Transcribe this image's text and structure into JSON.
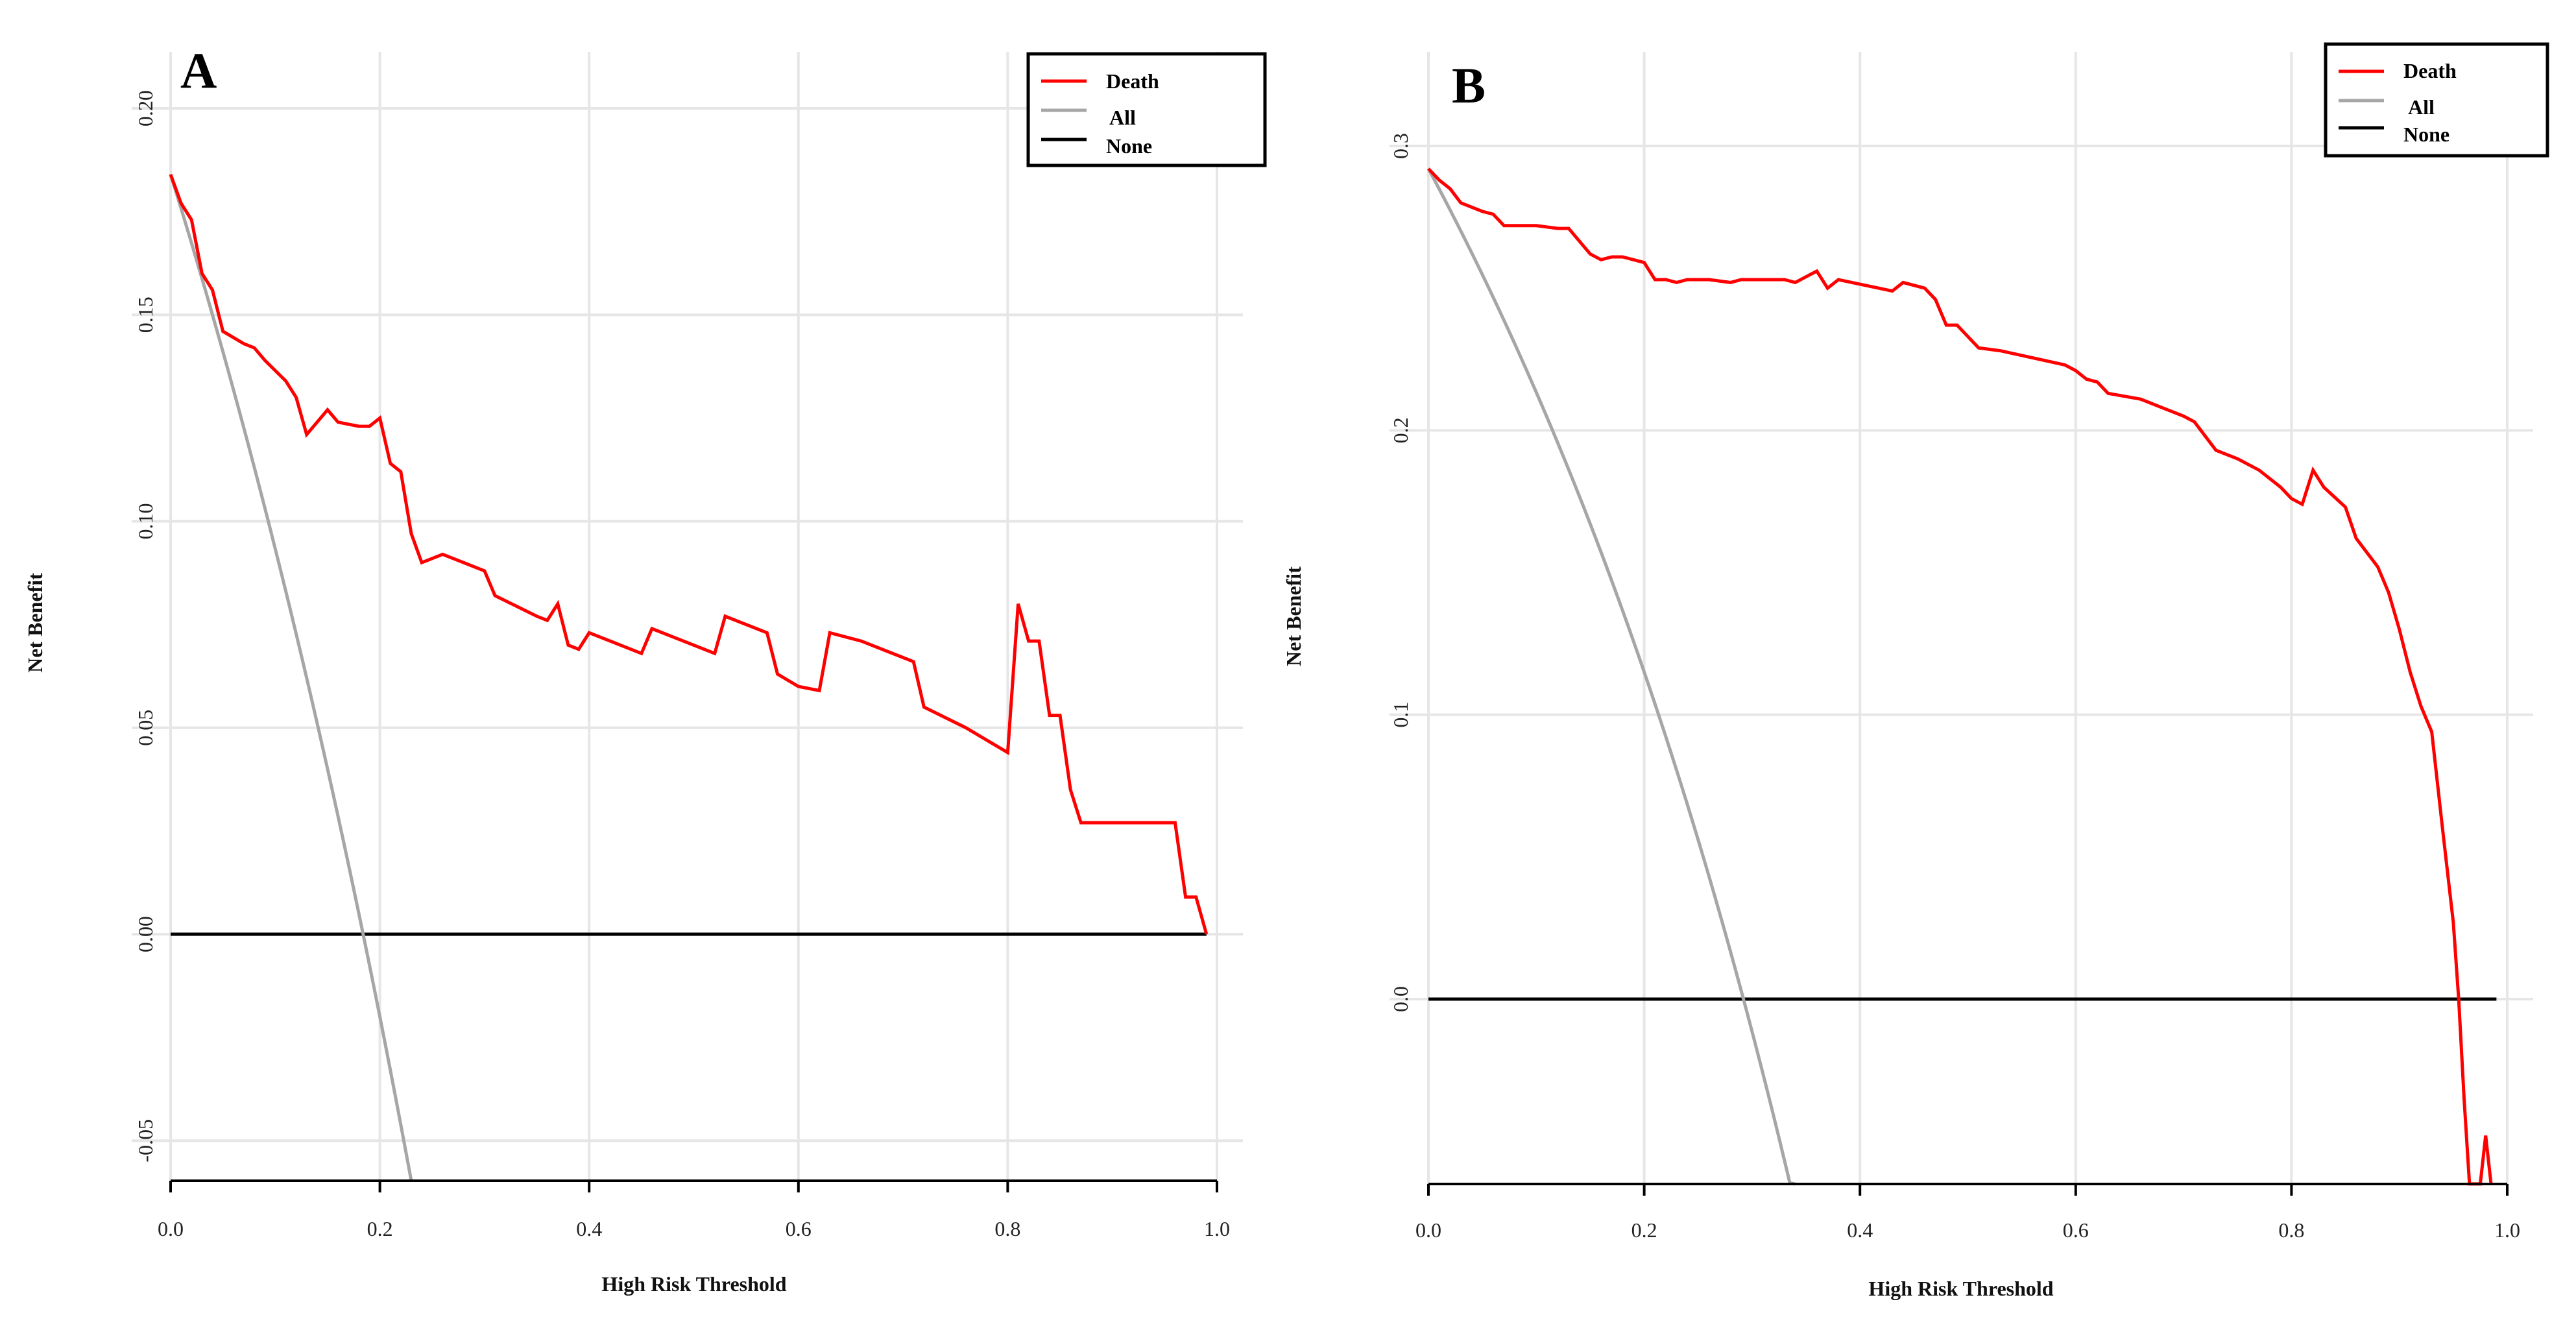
{
  "chart_data": [
    {
      "type": "line",
      "panel_label": "A",
      "xlabel": "High Risk Threshold",
      "ylabel": "Net Benefit",
      "xlim": [
        0,
        1
      ],
      "ylim": [
        -0.06,
        0.2
      ],
      "x_ticks": [
        "0.0",
        "0.2",
        "0.4",
        "0.6",
        "0.8",
        "1.0"
      ],
      "y_ticks": [
        "-0.05",
        "0.00",
        "0.05",
        "0.10",
        "0.15",
        "0.20"
      ],
      "legend_position": "top-right",
      "series": [
        {
          "name": "Death",
          "color": "#ff0000",
          "points": [
            [
              0.0,
              0.184
            ],
            [
              0.01,
              0.177
            ],
            [
              0.02,
              0.173
            ],
            [
              0.03,
              0.16
            ],
            [
              0.04,
              0.156
            ],
            [
              0.05,
              0.146
            ],
            [
              0.07,
              0.143
            ],
            [
              0.08,
              0.142
            ],
            [
              0.09,
              0.139
            ],
            [
              0.11,
              0.134
            ],
            [
              0.12,
              0.13
            ],
            [
              0.13,
              0.121
            ],
            [
              0.14,
              0.124
            ],
            [
              0.15,
              0.127
            ],
            [
              0.16,
              0.124
            ],
            [
              0.18,
              0.123
            ],
            [
              0.19,
              0.123
            ],
            [
              0.2,
              0.125
            ],
            [
              0.21,
              0.114
            ],
            [
              0.22,
              0.112
            ],
            [
              0.23,
              0.097
            ],
            [
              0.24,
              0.09
            ],
            [
              0.26,
              0.092
            ],
            [
              0.27,
              0.091
            ],
            [
              0.3,
              0.088
            ],
            [
              0.31,
              0.082
            ],
            [
              0.35,
              0.077
            ],
            [
              0.36,
              0.076
            ],
            [
              0.37,
              0.08
            ],
            [
              0.38,
              0.07
            ],
            [
              0.39,
              0.069
            ],
            [
              0.4,
              0.073
            ],
            [
              0.45,
              0.068
            ],
            [
              0.46,
              0.074
            ],
            [
              0.52,
              0.068
            ],
            [
              0.53,
              0.077
            ],
            [
              0.57,
              0.073
            ],
            [
              0.58,
              0.063
            ],
            [
              0.6,
              0.06
            ],
            [
              0.62,
              0.059
            ],
            [
              0.63,
              0.073
            ],
            [
              0.66,
              0.071
            ],
            [
              0.71,
              0.066
            ],
            [
              0.72,
              0.055
            ],
            [
              0.76,
              0.05
            ],
            [
              0.8,
              0.044
            ],
            [
              0.81,
              0.08
            ],
            [
              0.82,
              0.071
            ],
            [
              0.83,
              0.071
            ],
            [
              0.84,
              0.053
            ],
            [
              0.85,
              0.053
            ],
            [
              0.86,
              0.035
            ],
            [
              0.87,
              0.027
            ],
            [
              0.96,
              0.027
            ],
            [
              0.97,
              0.009
            ],
            [
              0.98,
              0.009
            ],
            [
              0.99,
              0.0
            ]
          ]
        },
        {
          "name": "All",
          "color": "#a6a6a6",
          "prevalence": 0.184
        },
        {
          "name": "None",
          "color": "#000000",
          "value": 0
        }
      ]
    },
    {
      "type": "line",
      "panel_label": "B",
      "xlabel": "High Risk Threshold",
      "ylabel": "Net Benefit",
      "xlim": [
        0,
        1
      ],
      "ylim": [
        -0.065,
        0.3
      ],
      "x_ticks": [
        "0.0",
        "0.2",
        "0.4",
        "0.6",
        "0.8",
        "1.0"
      ],
      "y_ticks": [
        "0.0",
        "0.1",
        "0.2",
        "0.3"
      ],
      "legend_position": "top-right",
      "series": [
        {
          "name": "Death",
          "color": "#ff0000",
          "points": [
            [
              0.0,
              0.292
            ],
            [
              0.01,
              0.288
            ],
            [
              0.02,
              0.285
            ],
            [
              0.03,
              0.28
            ],
            [
              0.05,
              0.277
            ],
            [
              0.06,
              0.276
            ],
            [
              0.07,
              0.272
            ],
            [
              0.1,
              0.272
            ],
            [
              0.12,
              0.271
            ],
            [
              0.13,
              0.271
            ],
            [
              0.15,
              0.262
            ],
            [
              0.16,
              0.26
            ],
            [
              0.17,
              0.261
            ],
            [
              0.18,
              0.261
            ],
            [
              0.2,
              0.259
            ],
            [
              0.21,
              0.253
            ],
            [
              0.22,
              0.253
            ],
            [
              0.23,
              0.252
            ],
            [
              0.24,
              0.253
            ],
            [
              0.26,
              0.253
            ],
            [
              0.28,
              0.252
            ],
            [
              0.29,
              0.253
            ],
            [
              0.31,
              0.253
            ],
            [
              0.33,
              0.253
            ],
            [
              0.34,
              0.252
            ],
            [
              0.36,
              0.256
            ],
            [
              0.37,
              0.25
            ],
            [
              0.38,
              0.253
            ],
            [
              0.43,
              0.249
            ],
            [
              0.44,
              0.252
            ],
            [
              0.46,
              0.25
            ],
            [
              0.47,
              0.246
            ],
            [
              0.48,
              0.237
            ],
            [
              0.49,
              0.237
            ],
            [
              0.51,
              0.229
            ],
            [
              0.53,
              0.228
            ],
            [
              0.59,
              0.223
            ],
            [
              0.6,
              0.221
            ],
            [
              0.61,
              0.218
            ],
            [
              0.62,
              0.217
            ],
            [
              0.63,
              0.213
            ],
            [
              0.66,
              0.211
            ],
            [
              0.68,
              0.208
            ],
            [
              0.7,
              0.205
            ],
            [
              0.71,
              0.203
            ],
            [
              0.73,
              0.193
            ],
            [
              0.75,
              0.19
            ],
            [
              0.77,
              0.186
            ],
            [
              0.79,
              0.18
            ],
            [
              0.8,
              0.176
            ],
            [
              0.81,
              0.174
            ],
            [
              0.82,
              0.186
            ],
            [
              0.83,
              0.18
            ],
            [
              0.85,
              0.173
            ],
            [
              0.86,
              0.162
            ],
            [
              0.88,
              0.152
            ],
            [
              0.89,
              0.143
            ],
            [
              0.9,
              0.13
            ],
            [
              0.91,
              0.115
            ],
            [
              0.92,
              0.103
            ],
            [
              0.93,
              0.094
            ],
            [
              0.94,
              0.06
            ],
            [
              0.95,
              0.027
            ],
            [
              0.955,
              0.0
            ],
            [
              0.96,
              -0.035
            ],
            [
              0.965,
              -0.065
            ],
            [
              0.975,
              -0.065
            ],
            [
              0.98,
              -0.048
            ],
            [
              0.985,
              -0.065
            ]
          ]
        },
        {
          "name": "All",
          "color": "#a6a6a6",
          "prevalence": 0.292
        },
        {
          "name": "None",
          "color": "#000000",
          "value": 0
        }
      ]
    }
  ]
}
